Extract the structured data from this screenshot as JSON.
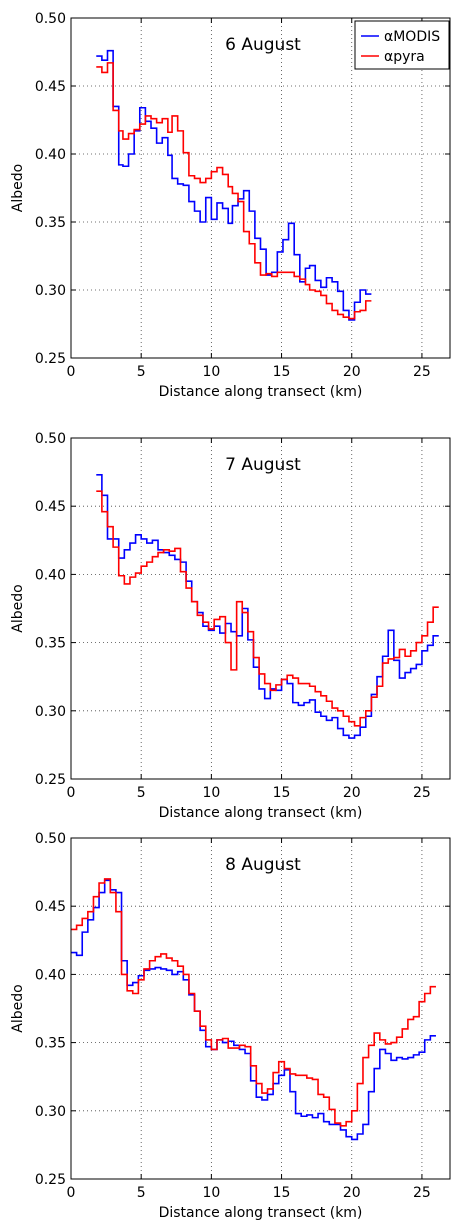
{
  "chart_data": [
    {
      "type": "line",
      "title": "6 August",
      "xlabel": "Distance along transect (km)",
      "ylabel": "Albedo",
      "xlim": [
        0,
        27
      ],
      "ylim": [
        0.25,
        0.5
      ],
      "xticks": [
        "0",
        "5",
        "10",
        "15",
        "20",
        "25"
      ],
      "yticks": [
        "0.25",
        "0.30",
        "0.35",
        "0.40",
        "0.45",
        "0.50"
      ],
      "grid": true,
      "step": true,
      "legend": {
        "show": true,
        "position": "top-right"
      },
      "x": [
        1.8,
        2.2,
        2.6,
        3.0,
        3.4,
        3.7,
        4.1,
        4.5,
        4.9,
        5.3,
        5.7,
        6.1,
        6.5,
        6.9,
        7.2,
        7.6,
        8.0,
        8.4,
        8.8,
        9.2,
        9.6,
        10.0,
        10.4,
        10.8,
        11.2,
        11.5,
        11.9,
        12.3,
        12.7,
        13.1,
        13.5,
        13.9,
        14.3,
        14.7,
        15.1,
        15.5,
        15.9,
        16.3,
        16.7,
        17.0,
        17.4,
        17.8,
        18.2,
        18.6,
        19.0,
        19.4,
        19.8,
        20.2,
        20.6,
        21.0
      ],
      "series": [
        {
          "name": "αMODIS",
          "color": "#0000ff",
          "values": [
            0.472,
            0.469,
            0.476,
            0.435,
            0.392,
            0.391,
            0.4,
            0.417,
            0.434,
            0.424,
            0.419,
            0.408,
            0.412,
            0.399,
            0.382,
            0.378,
            0.377,
            0.365,
            0.358,
            0.35,
            0.368,
            0.352,
            0.364,
            0.36,
            0.349,
            0.362,
            0.367,
            0.373,
            0.358,
            0.338,
            0.33,
            0.311,
            0.313,
            0.328,
            0.337,
            0.349,
            0.326,
            0.306,
            0.316,
            0.318,
            0.307,
            0.302,
            0.309,
            0.306,
            0.299,
            0.285,
            0.278,
            0.291,
            0.3,
            0.297
          ]
        },
        {
          "name": "αpyra",
          "color": "#ff0000",
          "values": [
            0.464,
            0.46,
            0.467,
            0.432,
            0.417,
            0.411,
            0.415,
            0.418,
            0.422,
            0.428,
            0.426,
            0.423,
            0.426,
            0.416,
            0.428,
            0.417,
            0.401,
            0.384,
            0.382,
            0.379,
            0.382,
            0.387,
            0.39,
            0.385,
            0.376,
            0.371,
            0.365,
            0.343,
            0.334,
            0.32,
            0.311,
            0.312,
            0.31,
            0.313,
            0.313,
            0.313,
            0.31,
            0.308,
            0.304,
            0.3,
            0.299,
            0.296,
            0.29,
            0.285,
            0.282,
            0.28,
            0.279,
            0.284,
            0.285,
            0.292
          ]
        }
      ]
    },
    {
      "type": "line",
      "title": "7 August",
      "xlabel": "Distance along transect (km)",
      "ylabel": "Albedo",
      "xlim": [
        0,
        27
      ],
      "ylim": [
        0.25,
        0.5
      ],
      "xticks": [
        "0",
        "5",
        "10",
        "15",
        "20",
        "25"
      ],
      "yticks": [
        "0.25",
        "0.30",
        "0.35",
        "0.40",
        "0.45",
        "0.50"
      ],
      "grid": true,
      "step": true,
      "x": [
        1.8,
        2.2,
        2.6,
        3.0,
        3.4,
        3.8,
        4.2,
        4.6,
        5.0,
        5.4,
        5.8,
        6.2,
        6.6,
        7.0,
        7.4,
        7.8,
        8.2,
        8.6,
        9.0,
        9.4,
        9.8,
        10.2,
        10.6,
        11.0,
        11.4,
        11.8,
        12.2,
        12.6,
        13.0,
        13.4,
        13.8,
        14.2,
        14.6,
        15.0,
        15.4,
        15.8,
        16.2,
        16.6,
        17.0,
        17.4,
        17.8,
        18.2,
        18.6,
        19.0,
        19.4,
        19.8,
        20.2,
        20.6,
        21.0,
        21.4,
        21.8,
        22.2,
        22.6,
        23.0,
        23.4,
        23.8,
        24.2,
        24.6,
        25.0,
        25.4,
        25.8
      ],
      "series": [
        {
          "name": "αMODIS",
          "color": "#0000ff",
          "values": [
            0.473,
            0.458,
            0.426,
            0.426,
            0.412,
            0.418,
            0.423,
            0.429,
            0.426,
            0.423,
            0.425,
            0.418,
            0.416,
            0.414,
            0.411,
            0.409,
            0.395,
            0.38,
            0.372,
            0.362,
            0.359,
            0.362,
            0.357,
            0.364,
            0.358,
            0.355,
            0.375,
            0.352,
            0.332,
            0.316,
            0.309,
            0.316,
            0.315,
            0.323,
            0.32,
            0.306,
            0.304,
            0.306,
            0.308,
            0.299,
            0.296,
            0.293,
            0.295,
            0.287,
            0.282,
            0.28,
            0.282,
            0.288,
            0.296,
            0.312,
            0.325,
            0.34,
            0.359,
            0.337,
            0.324,
            0.328,
            0.331,
            0.334,
            0.344,
            0.348,
            0.355
          ]
        },
        {
          "name": "αpyra",
          "color": "#ff0000",
          "values": [
            0.461,
            0.446,
            0.435,
            0.42,
            0.399,
            0.393,
            0.398,
            0.401,
            0.406,
            0.409,
            0.413,
            0.416,
            0.418,
            0.417,
            0.419,
            0.402,
            0.39,
            0.38,
            0.37,
            0.365,
            0.36,
            0.367,
            0.369,
            0.35,
            0.33,
            0.38,
            0.372,
            0.358,
            0.339,
            0.327,
            0.32,
            0.315,
            0.319,
            0.323,
            0.326,
            0.324,
            0.32,
            0.32,
            0.318,
            0.314,
            0.311,
            0.307,
            0.302,
            0.3,
            0.296,
            0.292,
            0.289,
            0.295,
            0.3,
            0.31,
            0.318,
            0.335,
            0.338,
            0.339,
            0.345,
            0.34,
            0.344,
            0.35,
            0.355,
            0.365,
            0.376
          ]
        }
      ]
    },
    {
      "type": "line",
      "title": "8 August",
      "xlabel": "Distance along transect (km)",
      "ylabel": "Albedo",
      "xlim": [
        0,
        27
      ],
      "ylim": [
        0.25,
        0.5
      ],
      "xticks": [
        "0",
        "5",
        "10",
        "15",
        "20",
        "25"
      ],
      "yticks": [
        "0.25",
        "0.30",
        "0.35",
        "0.40",
        "0.45",
        "0.50"
      ],
      "grid": true,
      "step": true,
      "x": [
        0.0,
        0.4,
        0.8,
        1.2,
        1.6,
        2.0,
        2.4,
        2.8,
        3.2,
        3.6,
        4.0,
        4.4,
        4.8,
        5.2,
        5.6,
        6.0,
        6.4,
        6.8,
        7.2,
        7.6,
        8.0,
        8.4,
        8.8,
        9.2,
        9.6,
        10.0,
        10.4,
        10.8,
        11.2,
        11.6,
        12.0,
        12.4,
        12.8,
        13.2,
        13.6,
        14.0,
        14.4,
        14.8,
        15.2,
        15.6,
        16.0,
        16.4,
        16.8,
        17.2,
        17.6,
        18.0,
        18.4,
        18.8,
        19.2,
        19.6,
        20.0,
        20.4,
        20.8,
        21.2,
        21.6,
        22.0,
        22.4,
        22.8,
        23.2,
        23.6,
        24.0,
        24.4,
        24.8,
        25.2,
        25.6
      ],
      "series": [
        {
          "name": "αMODIS",
          "color": "#0000ff",
          "values": [
            0.416,
            0.414,
            0.431,
            0.44,
            0.449,
            0.46,
            0.469,
            0.462,
            0.46,
            0.41,
            0.392,
            0.394,
            0.399,
            0.403,
            0.404,
            0.405,
            0.404,
            0.403,
            0.4,
            0.402,
            0.396,
            0.385,
            0.373,
            0.359,
            0.347,
            0.345,
            0.352,
            0.35,
            0.351,
            0.348,
            0.345,
            0.342,
            0.322,
            0.31,
            0.308,
            0.312,
            0.32,
            0.326,
            0.33,
            0.314,
            0.298,
            0.296,
            0.297,
            0.295,
            0.298,
            0.292,
            0.29,
            0.29,
            0.286,
            0.281,
            0.279,
            0.283,
            0.29,
            0.314,
            0.331,
            0.345,
            0.342,
            0.337,
            0.339,
            0.338,
            0.339,
            0.341,
            0.343,
            0.352,
            0.355
          ]
        },
        {
          "name": "αpyra",
          "color": "#ff0000",
          "values": [
            0.433,
            0.436,
            0.441,
            0.446,
            0.457,
            0.467,
            0.47,
            0.46,
            0.446,
            0.4,
            0.388,
            0.386,
            0.396,
            0.404,
            0.41,
            0.413,
            0.415,
            0.412,
            0.41,
            0.406,
            0.4,
            0.386,
            0.373,
            0.362,
            0.352,
            0.345,
            0.352,
            0.353,
            0.346,
            0.346,
            0.348,
            0.347,
            0.333,
            0.32,
            0.313,
            0.316,
            0.328,
            0.336,
            0.331,
            0.327,
            0.326,
            0.326,
            0.324,
            0.323,
            0.312,
            0.31,
            0.301,
            0.291,
            0.289,
            0.292,
            0.3,
            0.32,
            0.339,
            0.348,
            0.357,
            0.352,
            0.349,
            0.35,
            0.354,
            0.36,
            0.367,
            0.369,
            0.38,
            0.386,
            0.391
          ]
        }
      ]
    }
  ]
}
